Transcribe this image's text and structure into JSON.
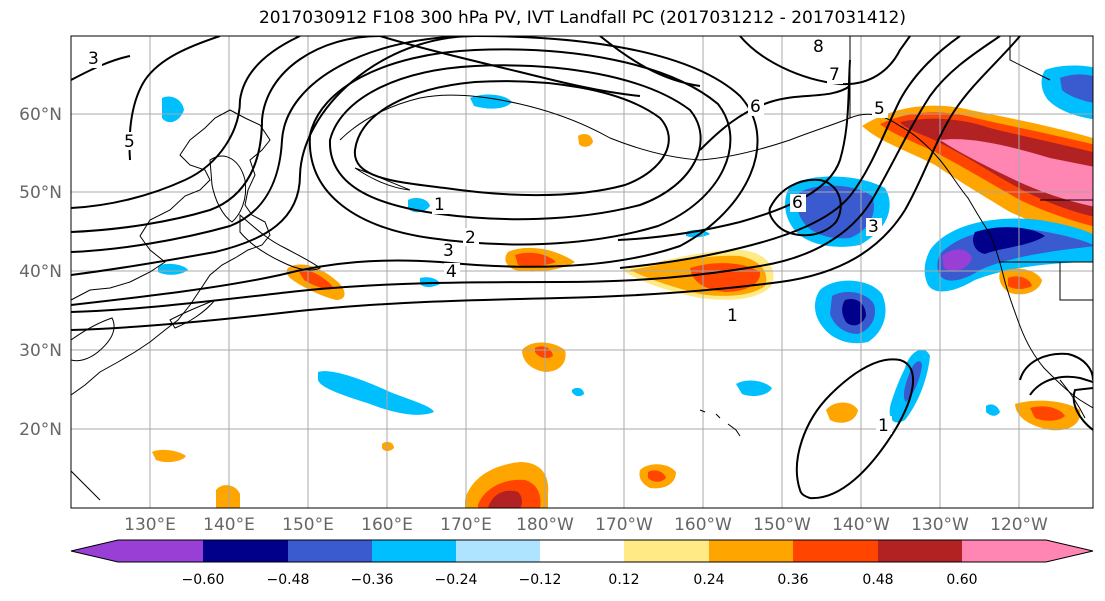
{
  "title": "2017030912 F108 300 hPa PV, IVT Landfall PC (2017031212 - 2017031412)",
  "lon_labels": [
    "130°E",
    "140°E",
    "150°E",
    "160°E",
    "170°E",
    "180°W",
    "170°W",
    "160°W",
    "150°W",
    "140°W",
    "130°W",
    "120°W"
  ],
  "lat_labels": [
    "60°N",
    "50°N",
    "40°N",
    "30°N",
    "20°N"
  ],
  "colorbar": {
    "ticks": [
      "−0.60",
      "−0.48",
      "−0.36",
      "−0.24",
      "−0.12",
      "0.12",
      "0.24",
      "0.36",
      "0.48",
      "0.60"
    ],
    "colors": [
      "#9a3fd6",
      "#00008b",
      "#3a5bd0",
      "#00bfff",
      "#aee4ff",
      "#ffffff",
      "#ffea85",
      "#ffa500",
      "#ff4500",
      "#b22222",
      "#ff85b3"
    ]
  },
  "contour_labels": [
    "3",
    "5",
    "1",
    "2",
    "3",
    "4",
    "8",
    "7",
    "6",
    "5",
    "6",
    "3",
    "1",
    "1"
  ]
}
